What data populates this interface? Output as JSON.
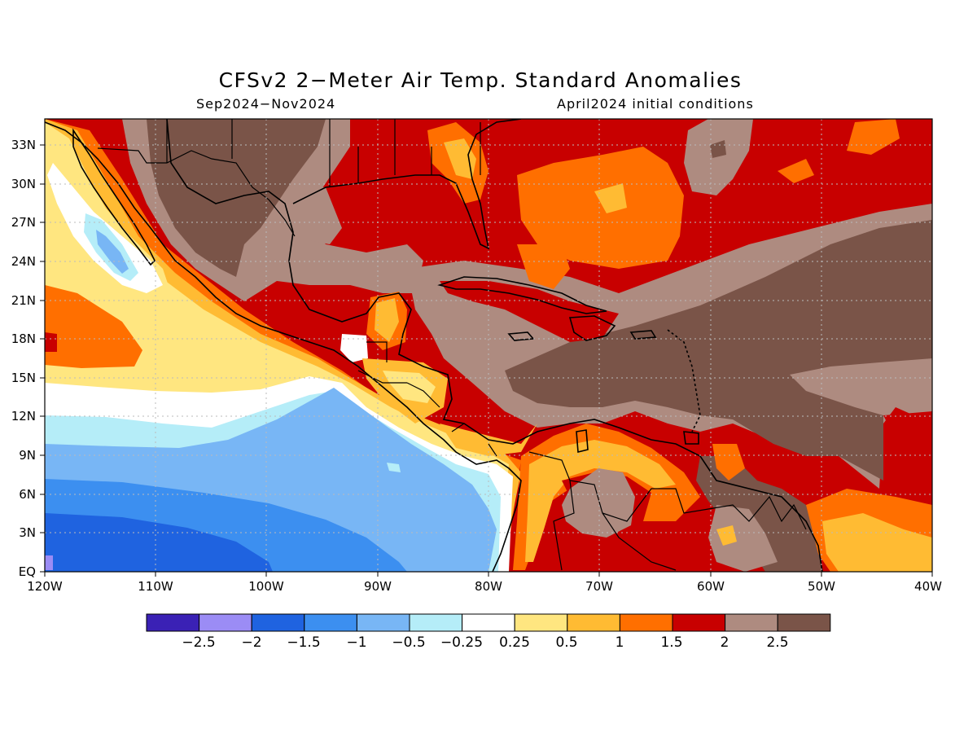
{
  "map": {
    "title": "CFSv2 2−Meter Air Temp. Standard Anomalies",
    "period": "Sep2024−Nov2024",
    "initial_conditions": "April2024 initial conditions",
    "extent": {
      "lon_range": [
        -120,
        -40
      ],
      "lat_range": [
        0,
        35
      ]
    },
    "lon_ticks": [
      "120W",
      "110W",
      "100W",
      "90W",
      "80W",
      "70W",
      "60W",
      "50W",
      "40W"
    ],
    "lat_ticks": [
      "33N",
      "30N",
      "27N",
      "24N",
      "21N",
      "18N",
      "15N",
      "12N",
      "9N",
      "6N",
      "3N",
      "EQ"
    ],
    "grid": "dotted"
  },
  "legend": {
    "colors": [
      "#3a21b5",
      "#9b8cf5",
      "#1f63e0",
      "#3c8ff0",
      "#78b6f5",
      "#b5edf8",
      "#ffffff",
      "#ffe680",
      "#ffbb33",
      "#ff6f00",
      "#c80000",
      "#ae8b80",
      "#7a5448"
    ],
    "labels": [
      "−2.5",
      "−2",
      "−1.5",
      "−1",
      "−0.5",
      "−0.25",
      "0.25",
      "0.5",
      "1",
      "1.5",
      "2",
      "2.5"
    ]
  }
}
